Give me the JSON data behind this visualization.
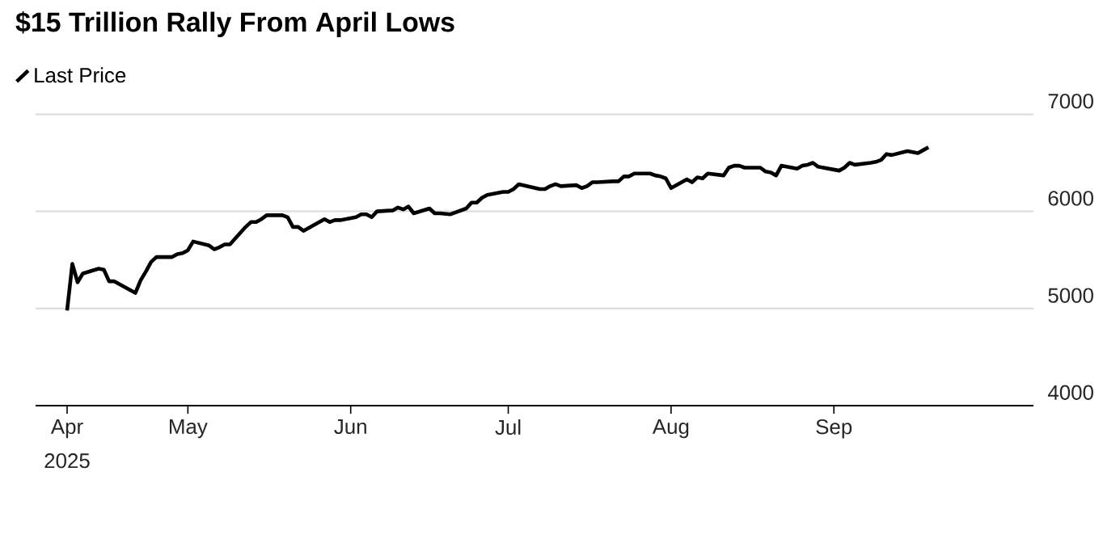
{
  "chart_data": {
    "type": "line",
    "title": "$15 Trillion Rally From April Lows",
    "legend": "top left",
    "grid": "y",
    "line_style": "solid",
    "marker": "none",
    "xlim": [
      "2025-04-02",
      "2025-10-09"
    ],
    "ylim": [
      4000,
      7000
    ],
    "yticks": [
      4000,
      5000,
      6000,
      7000
    ],
    "xticks": [
      {
        "value": "2025-04-08",
        "label": "Apr"
      },
      {
        "value": "2025-05-01",
        "label": "May"
      },
      {
        "value": "2025-06-01",
        "label": "Jun"
      },
      {
        "value": "2025-07-01",
        "label": "Jul"
      },
      {
        "value": "2025-08-01",
        "label": "Aug"
      },
      {
        "value": "2025-09-01",
        "label": "Sep"
      }
    ],
    "annotations": [
      "2025"
    ],
    "x": [
      "2025-04-08",
      "2025-04-09",
      "2025-04-10",
      "2025-04-11",
      "2025-04-14",
      "2025-04-15",
      "2025-04-16",
      "2025-04-17",
      "2025-04-21",
      "2025-04-22",
      "2025-04-23",
      "2025-04-24",
      "2025-04-25",
      "2025-04-28",
      "2025-04-29",
      "2025-04-30",
      "2025-05-01",
      "2025-05-02",
      "2025-05-05",
      "2025-05-06",
      "2025-05-07",
      "2025-05-08",
      "2025-05-09",
      "2025-05-12",
      "2025-05-13",
      "2025-05-14",
      "2025-05-15",
      "2025-05-16",
      "2025-05-19",
      "2025-05-20",
      "2025-05-21",
      "2025-05-22",
      "2025-05-23",
      "2025-05-27",
      "2025-05-28",
      "2025-05-29",
      "2025-05-30",
      "2025-06-02",
      "2025-06-03",
      "2025-06-04",
      "2025-06-05",
      "2025-06-06",
      "2025-06-09",
      "2025-06-10",
      "2025-06-11",
      "2025-06-12",
      "2025-06-13",
      "2025-06-16",
      "2025-06-17",
      "2025-06-18",
      "2025-06-20",
      "2025-06-23",
      "2025-06-24",
      "2025-06-25",
      "2025-06-26",
      "2025-06-27",
      "2025-06-30",
      "2025-07-01",
      "2025-07-02",
      "2025-07-03",
      "2025-07-07",
      "2025-07-08",
      "2025-07-09",
      "2025-07-10",
      "2025-07-11",
      "2025-07-14",
      "2025-07-15",
      "2025-07-16",
      "2025-07-17",
      "2025-07-18",
      "2025-07-21",
      "2025-07-22",
      "2025-07-23",
      "2025-07-24",
      "2025-07-25",
      "2025-07-28",
      "2025-07-29",
      "2025-07-30",
      "2025-07-31",
      "2025-08-01",
      "2025-08-04",
      "2025-08-05",
      "2025-08-06",
      "2025-08-07",
      "2025-08-08",
      "2025-08-11",
      "2025-08-12",
      "2025-08-13",
      "2025-08-14",
      "2025-08-15",
      "2025-08-18",
      "2025-08-19",
      "2025-08-20",
      "2025-08-21",
      "2025-08-22",
      "2025-08-25",
      "2025-08-26",
      "2025-08-27",
      "2025-08-28",
      "2025-08-29",
      "2025-09-02",
      "2025-09-03",
      "2025-09-04",
      "2025-09-05",
      "2025-09-08",
      "2025-09-09",
      "2025-09-10",
      "2025-09-11",
      "2025-09-12",
      "2025-09-15",
      "2025-09-16",
      "2025-09-17",
      "2025-09-18",
      "2025-09-19"
    ],
    "series": [
      {
        "name": "Last Price",
        "color": "#000000",
        "values": [
          4980,
          5460,
          5270,
          5360,
          5410,
          5400,
          5280,
          5280,
          5160,
          5290,
          5380,
          5480,
          5530,
          5530,
          5560,
          5570,
          5600,
          5690,
          5650,
          5610,
          5630,
          5660,
          5660,
          5840,
          5890,
          5890,
          5920,
          5960,
          5960,
          5940,
          5840,
          5840,
          5800,
          5920,
          5890,
          5910,
          5910,
          5940,
          5970,
          5970,
          5940,
          6000,
          6010,
          6040,
          6020,
          6050,
          5980,
          6030,
          5980,
          5980,
          5970,
          6030,
          6090,
          6090,
          6140,
          6170,
          6200,
          6200,
          6230,
          6280,
          6230,
          6230,
          6260,
          6280,
          6260,
          6270,
          6240,
          6260,
          6300,
          6300,
          6310,
          6310,
          6360,
          6360,
          6390,
          6390,
          6370,
          6360,
          6340,
          6240,
          6330,
          6300,
          6350,
          6340,
          6390,
          6370,
          6450,
          6470,
          6470,
          6450,
          6450,
          6410,
          6400,
          6370,
          6470,
          6440,
          6470,
          6480,
          6500,
          6460,
          6420,
          6450,
          6500,
          6480,
          6500,
          6510,
          6530,
          6590,
          6580,
          6620,
          6610,
          6600,
          6630,
          6660
        ]
      }
    ]
  }
}
